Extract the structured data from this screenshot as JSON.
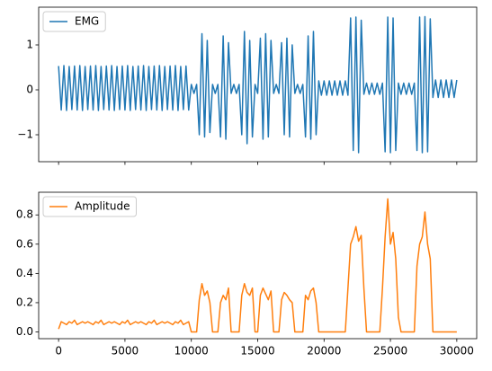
{
  "chart_data": [
    {
      "type": "line",
      "xlim": [
        -1500,
        31500
      ],
      "ylim": [
        -1.6,
        1.84
      ],
      "xticks": [
        0,
        5000,
        10000,
        15000,
        20000,
        25000,
        30000
      ],
      "yticks": [
        {
          "value": -1,
          "label": "−1"
        },
        0,
        1
      ],
      "legend": "upper left",
      "series": [
        {
          "name": "EMG",
          "color": "#1f77b4",
          "x": [
            0,
            200,
            400,
            600,
            800,
            1000,
            1200,
            1400,
            1600,
            1800,
            2000,
            2200,
            2400,
            2600,
            2800,
            3000,
            3200,
            3400,
            3600,
            3800,
            4000,
            4200,
            4400,
            4600,
            4800,
            5000,
            5200,
            5400,
            5600,
            5800,
            6000,
            6200,
            6400,
            6600,
            6800,
            7000,
            7200,
            7400,
            7600,
            7800,
            8000,
            8200,
            8400,
            8600,
            8800,
            9000,
            9200,
            9400,
            9600,
            9800,
            10000,
            10200,
            10400,
            10600,
            10800,
            11000,
            11200,
            11400,
            11600,
            11800,
            12000,
            12200,
            12400,
            12600,
            12800,
            13000,
            13200,
            13400,
            13600,
            13800,
            14000,
            14200,
            14400,
            14600,
            14800,
            15000,
            15200,
            15400,
            15600,
            15800,
            16000,
            16200,
            16400,
            16600,
            16800,
            17000,
            17200,
            17400,
            17600,
            17800,
            18000,
            18200,
            18400,
            18600,
            18800,
            19000,
            19200,
            19400,
            19600,
            19800,
            20000,
            20200,
            20400,
            20600,
            20800,
            21000,
            21200,
            21400,
            21600,
            21800,
            22000,
            22200,
            22400,
            22600,
            22800,
            23000,
            23200,
            23400,
            23600,
            23800,
            24000,
            24200,
            24400,
            24600,
            24800,
            25000,
            25200,
            25400,
            25600,
            25800,
            26000,
            26200,
            26400,
            26600,
            26800,
            27000,
            27200,
            27400,
            27600,
            27800,
            28000,
            28200,
            28400,
            28600,
            28800,
            29000,
            29200,
            29400,
            29600,
            29800,
            30000
          ],
          "values": [
            0.53,
            -0.45,
            0.54,
            -0.46,
            0.52,
            -0.44,
            0.53,
            -0.45,
            0.54,
            -0.46,
            0.52,
            -0.44,
            0.53,
            -0.45,
            0.54,
            -0.46,
            0.52,
            -0.44,
            0.53,
            -0.45,
            0.54,
            -0.46,
            0.52,
            -0.44,
            0.53,
            -0.45,
            0.54,
            -0.46,
            0.52,
            -0.44,
            0.53,
            -0.45,
            0.54,
            -0.46,
            0.52,
            -0.44,
            0.53,
            -0.45,
            0.54,
            -0.46,
            0.52,
            -0.44,
            0.53,
            -0.45,
            0.54,
            -0.46,
            0.52,
            -0.44,
            0.53,
            -0.45,
            0.12,
            -0.08,
            0.12,
            -1.0,
            1.25,
            -1.05,
            1.1,
            -0.95,
            0.12,
            -0.08,
            0.12,
            -1.05,
            1.2,
            -1.1,
            1.05,
            -0.08,
            0.12,
            -0.08,
            0.12,
            -1.0,
            1.3,
            -1.2,
            1.1,
            -1.05,
            0.12,
            -0.08,
            1.15,
            -1.1,
            1.25,
            -1.05,
            1.1,
            -0.08,
            0.12,
            -0.08,
            1.05,
            -1.0,
            1.15,
            -1.05,
            1.0,
            -0.08,
            0.12,
            -0.08,
            0.12,
            -1.05,
            1.2,
            -1.1,
            1.3,
            -1.0,
            0.2,
            -0.12,
            0.2,
            -0.12,
            0.2,
            -0.12,
            0.2,
            -0.12,
            0.2,
            -0.12,
            0.2,
            -0.12,
            1.6,
            -1.35,
            1.62,
            -1.4,
            1.55,
            -0.1,
            0.15,
            -0.1,
            0.15,
            -0.1,
            0.15,
            -0.1,
            0.15,
            -1.38,
            1.62,
            -1.4,
            1.6,
            -1.35,
            0.15,
            -0.1,
            0.15,
            -0.1,
            0.15,
            -0.1,
            0.15,
            -1.35,
            1.62,
            -1.4,
            1.63,
            -1.38,
            1.58,
            -0.17,
            0.22,
            -0.17,
            0.22,
            -0.17,
            0.22,
            -0.17,
            0.22,
            -0.17,
            0.22
          ]
        }
      ]
    },
    {
      "type": "line",
      "xlim": [
        -1500,
        31500
      ],
      "ylim": [
        -0.046,
        0.955
      ],
      "xticks": [
        0,
        5000,
        10000,
        15000,
        20000,
        25000,
        30000
      ],
      "yticks": [
        {
          "value": 0,
          "label": "0.0"
        },
        0.2,
        0.4,
        0.6,
        0.8
      ],
      "legend": "upper left",
      "series": [
        {
          "name": "Amplitude",
          "color": "#ff7f0e",
          "x": [
            0,
            200,
            400,
            600,
            800,
            1000,
            1200,
            1400,
            1600,
            1800,
            2000,
            2200,
            2400,
            2600,
            2800,
            3000,
            3200,
            3400,
            3600,
            3800,
            4000,
            4200,
            4400,
            4600,
            4800,
            5000,
            5200,
            5400,
            5600,
            5800,
            6000,
            6200,
            6400,
            6600,
            6800,
            7000,
            7200,
            7400,
            7600,
            7800,
            8000,
            8200,
            8400,
            8600,
            8800,
            9000,
            9200,
            9400,
            9600,
            9800,
            10000,
            10200,
            10400,
            10600,
            10800,
            11000,
            11200,
            11400,
            11600,
            11800,
            12000,
            12200,
            12400,
            12600,
            12800,
            13000,
            13200,
            13400,
            13600,
            13800,
            14000,
            14200,
            14400,
            14600,
            14800,
            15000,
            15200,
            15400,
            15600,
            15800,
            16000,
            16200,
            16400,
            16600,
            16800,
            17000,
            17200,
            17400,
            17600,
            17800,
            18000,
            18200,
            18400,
            18600,
            18800,
            19000,
            19200,
            19400,
            19600,
            19800,
            20000,
            20200,
            20400,
            20600,
            20800,
            21000,
            21200,
            21400,
            21600,
            21800,
            22000,
            22200,
            22400,
            22600,
            22800,
            23000,
            23200,
            23400,
            23600,
            23800,
            24000,
            24200,
            24400,
            24600,
            24800,
            25000,
            25200,
            25400,
            25600,
            25800,
            26000,
            26200,
            26400,
            26600,
            26800,
            27000,
            27200,
            27400,
            27600,
            27800,
            28000,
            28200,
            28400,
            28600,
            28800,
            29000,
            29200,
            29400,
            29600,
            29800,
            30000
          ],
          "values": [
            0.02,
            0.07,
            0.06,
            0.05,
            0.07,
            0.06,
            0.08,
            0.05,
            0.06,
            0.07,
            0.06,
            0.07,
            0.06,
            0.05,
            0.07,
            0.06,
            0.08,
            0.05,
            0.06,
            0.07,
            0.06,
            0.07,
            0.06,
            0.05,
            0.07,
            0.06,
            0.08,
            0.05,
            0.06,
            0.07,
            0.06,
            0.07,
            0.06,
            0.05,
            0.07,
            0.06,
            0.08,
            0.05,
            0.06,
            0.07,
            0.06,
            0.07,
            0.06,
            0.05,
            0.07,
            0.06,
            0.08,
            0.05,
            0.06,
            0.07,
            0,
            0,
            0,
            0.22,
            0.33,
            0.25,
            0.28,
            0.2,
            0,
            0,
            0,
            0.2,
            0.25,
            0.22,
            0.3,
            0,
            0,
            0,
            0,
            0.25,
            0.33,
            0.27,
            0.25,
            0.3,
            0,
            0,
            0.25,
            0.3,
            0.26,
            0.22,
            0.28,
            0,
            0,
            0,
            0.22,
            0.27,
            0.25,
            0.22,
            0.2,
            0,
            0,
            0,
            0,
            0.25,
            0.22,
            0.28,
            0.3,
            0.2,
            0,
            0,
            0,
            0,
            0,
            0,
            0,
            0,
            0,
            0,
            0,
            0.3,
            0.6,
            0.65,
            0.72,
            0.62,
            0.66,
            0.3,
            0,
            0,
            0,
            0,
            0,
            0,
            0.3,
            0.65,
            0.91,
            0.6,
            0.68,
            0.5,
            0.1,
            0,
            0,
            0,
            0,
            0,
            0,
            0.45,
            0.6,
            0.65,
            0.82,
            0.6,
            0.5,
            0,
            0,
            0,
            0,
            0,
            0,
            0,
            0,
            0,
            0
          ]
        }
      ]
    }
  ]
}
